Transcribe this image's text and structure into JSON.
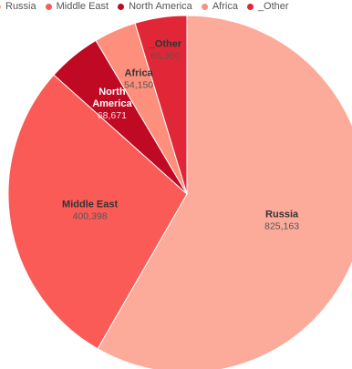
{
  "chart_data": {
    "type": "pie",
    "title": "",
    "legend_position": "top-left",
    "slices": [
      {
        "name": "Russia",
        "value": 825163,
        "label": "825,163",
        "color": "#fcaa9a",
        "label_color": "#333333"
      },
      {
        "name": "Middle East",
        "value": 400398,
        "label": "400,398",
        "color": "#fb5b57",
        "label_color": "#333333"
      },
      {
        "name": "North America",
        "value": 68671,
        "label": "68,671",
        "color": "#c00923",
        "label_color": "#ffffff"
      },
      {
        "name": "Africa",
        "value": 54150,
        "label": "54,150",
        "color": "#fd8f7c",
        "label_color": "#333333"
      },
      {
        "name": "_Other",
        "value": 66350,
        "label": "66,350",
        "color": "#e12737",
        "label_color": "#333333"
      }
    ]
  }
}
